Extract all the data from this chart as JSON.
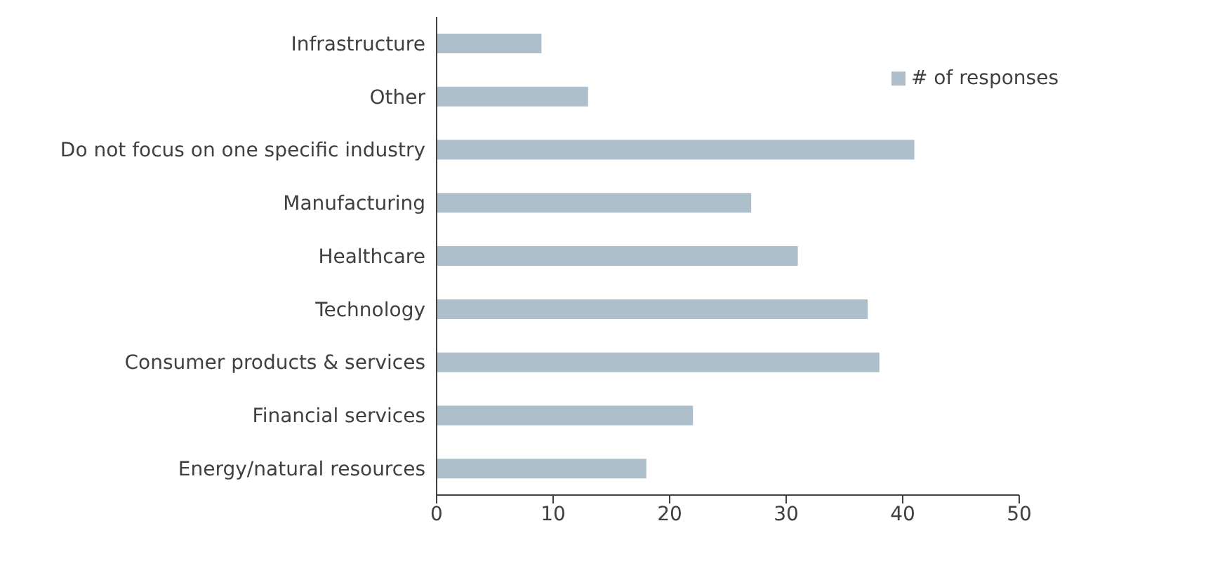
{
  "chart_data": {
    "type": "bar",
    "orientation": "horizontal",
    "categories": [
      "Infrastructure",
      "Other",
      "Do not focus on one specific industry",
      "Manufacturing",
      "Healthcare",
      "Technology",
      "Consumer products & services",
      "Financial services",
      "Energy/natural resources"
    ],
    "series": [
      {
        "name": "# of responses",
        "color": "#adbfca",
        "values": [
          9,
          13,
          41,
          27,
          31,
          37,
          38,
          22,
          18
        ]
      }
    ],
    "xlim": [
      0,
      50
    ],
    "xticks": [
      0,
      10,
      20,
      30,
      40,
      50
    ],
    "grid": false,
    "legend": "top right"
  }
}
